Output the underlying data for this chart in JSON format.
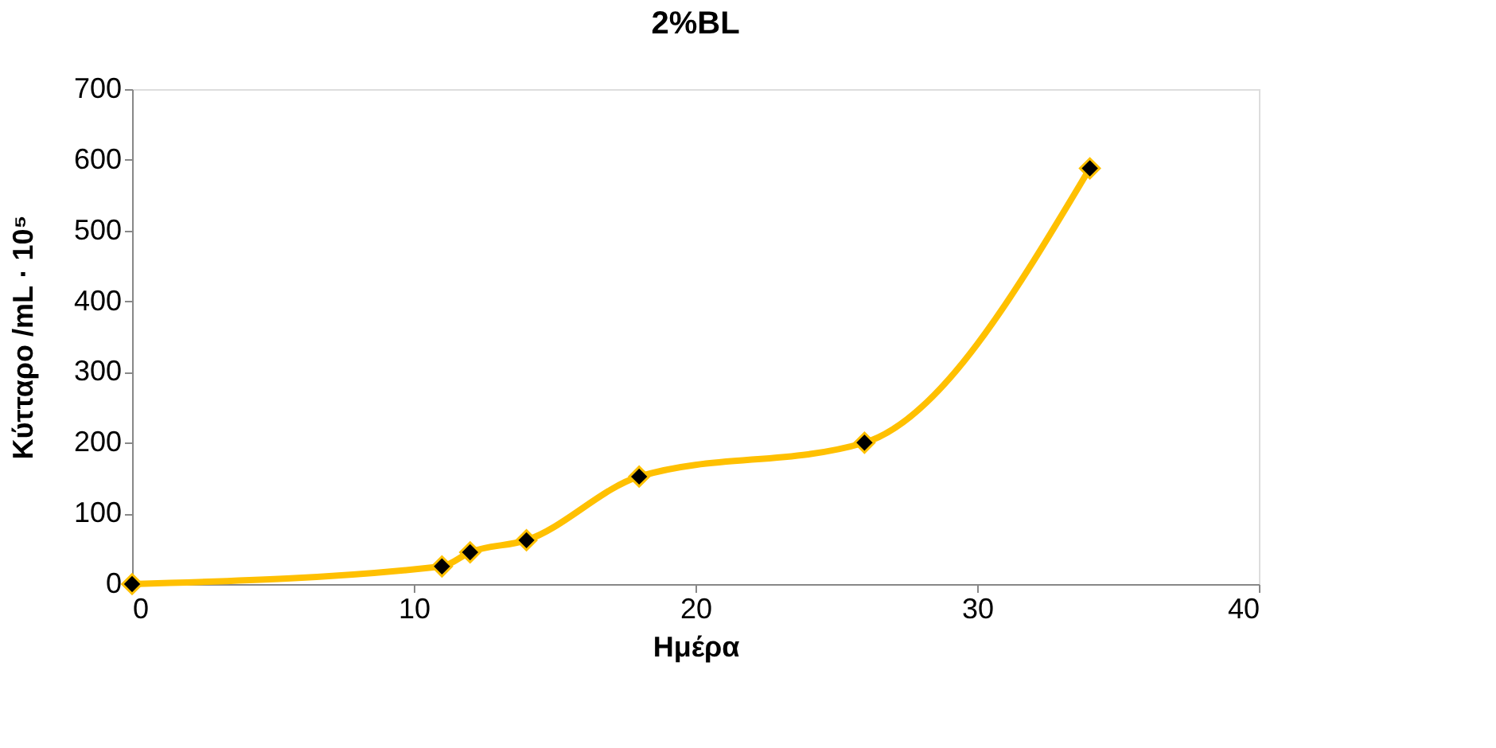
{
  "chart_data": {
    "type": "line",
    "title": "2%BL",
    "xlabel": "Ημέρα",
    "ylabel": "Κύτταρο /mL · 10⁵",
    "x": [
      0,
      11,
      12,
      14,
      18,
      26,
      34
    ],
    "series": [
      {
        "color": "#ffc000",
        "values": [
          0,
          25,
          45,
          62,
          152,
          200,
          588
        ]
      }
    ],
    "xlim": [
      0,
      40
    ],
    "xticks": [
      0,
      10,
      20,
      30,
      40
    ],
    "ylim": [
      0,
      700
    ],
    "yticks": [
      0,
      100,
      200,
      300,
      400,
      500,
      600,
      700
    ],
    "grid": false,
    "marker": "diamond",
    "line_style": "solid"
  }
}
